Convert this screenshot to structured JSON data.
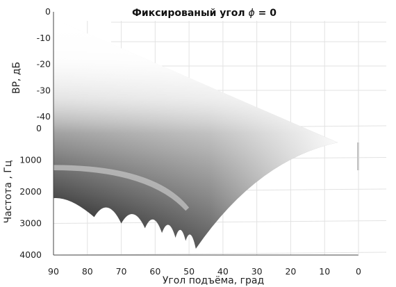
{
  "chart_data": {
    "type": "area",
    "title_prefix": "Фиксированый угол",
    "title_symbol": "ϕ",
    "title_suffix": "= 0",
    "xlabel": "Угол подъёма, град",
    "ylabel_freq": "Частота , Гц",
    "zlabel": "BP, дБ",
    "x_ticks": [
      "90",
      "80",
      "70",
      "60",
      "50",
      "40",
      "30",
      "20",
      "10",
      "0"
    ],
    "y_ticks": [
      "0",
      "1000",
      "2000",
      "3000",
      "4000"
    ],
    "z_ticks": [
      "0",
      "-10",
      "-20",
      "-30",
      "-40"
    ],
    "xlim": [
      0,
      90
    ],
    "ylim": [
      0,
      4000
    ],
    "zlim": [
      -45,
      0
    ],
    "colormap": "gray",
    "grid": true,
    "notch_elevations": [
      78,
      70,
      63,
      58,
      54,
      51,
      48
    ],
    "notch_frequencies": [
      2800,
      3000,
      3150,
      3300,
      3450,
      3550,
      3800
    ]
  }
}
